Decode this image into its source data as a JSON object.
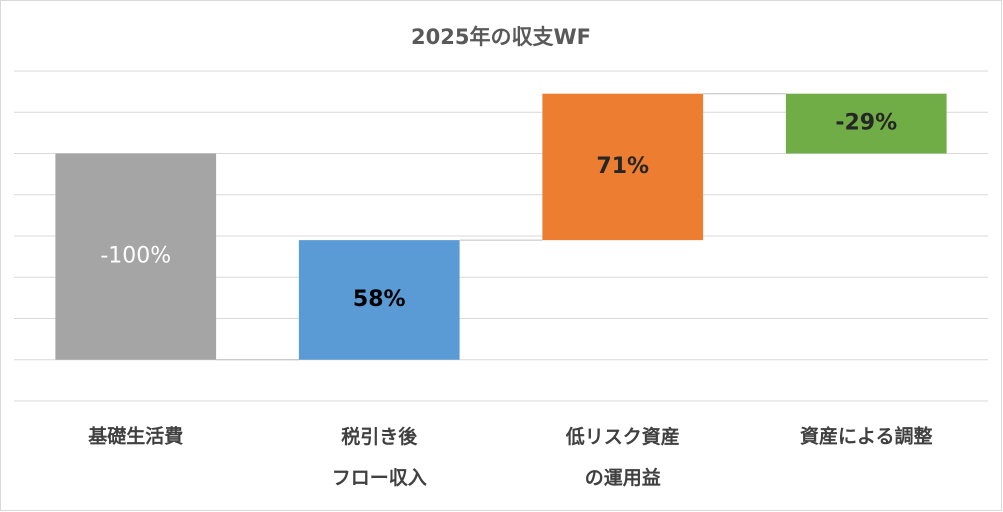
{
  "chart_data": {
    "type": "waterfall",
    "title": "2025年の収支WF",
    "categories": [
      "基礎生活費",
      "税引き後\nフロー収入",
      "低リスク資産\nの運用益",
      "資産による調整"
    ],
    "values": [
      -100,
      58,
      71,
      -29
    ],
    "value_labels": [
      "-100%",
      "58%",
      "71%",
      "-29%"
    ],
    "colors": [
      "#a5a5a5",
      "#5b9bd5",
      "#ed7d31",
      "#70ad47"
    ],
    "ylim": [
      -120,
      40
    ],
    "yticks": [
      -120,
      -100,
      -80,
      -60,
      -40,
      -20,
      0,
      20,
      40
    ],
    "grid": true
  }
}
